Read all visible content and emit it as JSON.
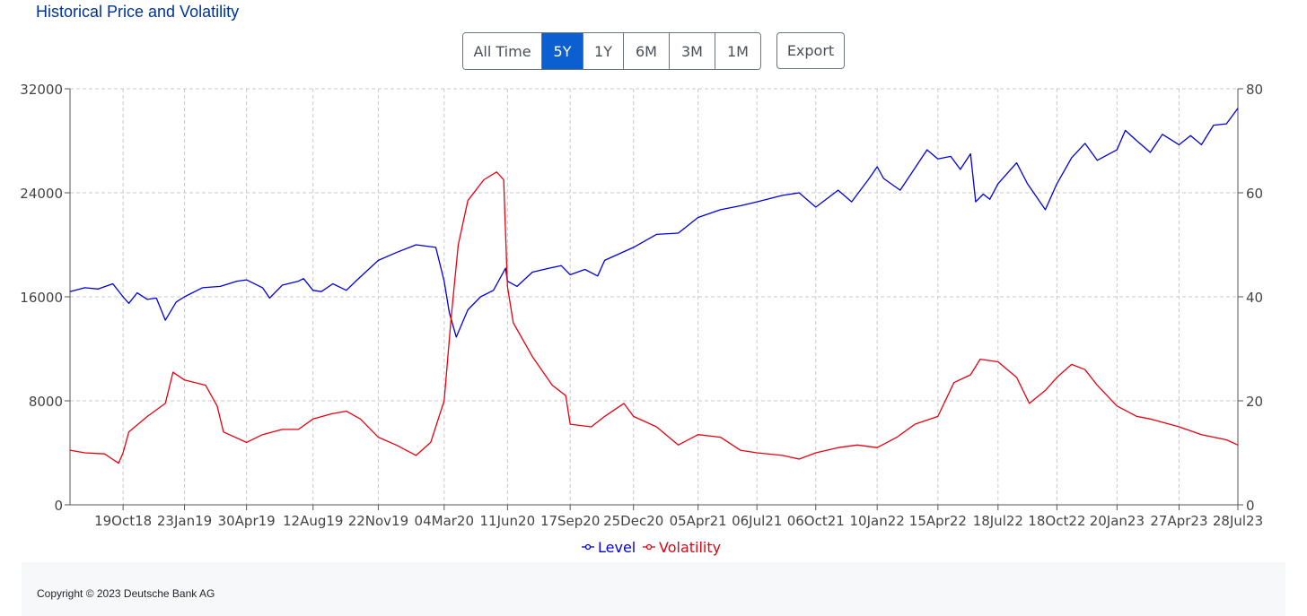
{
  "header": {
    "title": "Historical Price and Volatility"
  },
  "range_buttons": [
    {
      "label": "All Time",
      "active": false
    },
    {
      "label": "5Y",
      "active": true
    },
    {
      "label": "1Y",
      "active": false
    },
    {
      "label": "6M",
      "active": false
    },
    {
      "label": "3M",
      "active": false
    },
    {
      "label": "1M",
      "active": false
    }
  ],
  "export_label": "Export",
  "footer": {
    "copyright": "Copyright © 2023 Deutsche Bank AG"
  },
  "colors": {
    "level": "#0000dd",
    "volatility": "#e8000f",
    "grid": "#c8c8c8",
    "active_button": "#0b5fd1"
  },
  "chart_data": {
    "type": "line",
    "grid": true,
    "legend_position": "bottom-center",
    "x_range": [
      "2018-07-28",
      "2023-07-28"
    ],
    "x_ticks": [
      {
        "date": "2018-10-19",
        "label": "19Oct18"
      },
      {
        "date": "2019-01-23",
        "label": "23Jan19"
      },
      {
        "date": "2019-04-30",
        "label": "30Apr19"
      },
      {
        "date": "2019-08-12",
        "label": "12Aug19"
      },
      {
        "date": "2019-11-22",
        "label": "22Nov19"
      },
      {
        "date": "2020-03-04",
        "label": "04Mar20"
      },
      {
        "date": "2020-06-11",
        "label": "11Jun20"
      },
      {
        "date": "2020-09-17",
        "label": "17Sep20"
      },
      {
        "date": "2020-12-25",
        "label": "25Dec20"
      },
      {
        "date": "2021-04-05",
        "label": "05Apr21"
      },
      {
        "date": "2021-07-06",
        "label": "06Jul21"
      },
      {
        "date": "2021-10-06",
        "label": "06Oct21"
      },
      {
        "date": "2022-01-10",
        "label": "10Jan22"
      },
      {
        "date": "2022-04-15",
        "label": "15Apr22"
      },
      {
        "date": "2022-07-18",
        "label": "18Jul22"
      },
      {
        "date": "2022-10-18",
        "label": "18Oct22"
      },
      {
        "date": "2023-01-20",
        "label": "20Jan23"
      },
      {
        "date": "2023-04-27",
        "label": "27Apr23"
      },
      {
        "date": "2023-07-28",
        "label": "28Jul23"
      }
    ],
    "y_left": {
      "min": 0,
      "max": 32000,
      "ticks": [
        0,
        8000,
        16000,
        24000,
        32000
      ]
    },
    "y_right": {
      "min": 0,
      "max": 80,
      "ticks": [
        0,
        20,
        40,
        60,
        80
      ]
    },
    "series": [
      {
        "name": "Level",
        "axis": "left",
        "points": [
          [
            "2018-07-28",
            16400
          ],
          [
            "2018-08-20",
            16700
          ],
          [
            "2018-09-10",
            16600
          ],
          [
            "2018-10-03",
            17000
          ],
          [
            "2018-10-19",
            16000
          ],
          [
            "2018-10-28",
            15500
          ],
          [
            "2018-11-10",
            16300
          ],
          [
            "2018-11-26",
            15800
          ],
          [
            "2018-12-10",
            15900
          ],
          [
            "2018-12-24",
            14200
          ],
          [
            "2019-01-10",
            15600
          ],
          [
            "2019-01-23",
            16000
          ],
          [
            "2019-02-20",
            16700
          ],
          [
            "2019-03-20",
            16800
          ],
          [
            "2019-04-15",
            17200
          ],
          [
            "2019-04-30",
            17300
          ],
          [
            "2019-05-25",
            16700
          ],
          [
            "2019-06-05",
            15900
          ],
          [
            "2019-06-25",
            16900
          ],
          [
            "2019-07-20",
            17200
          ],
          [
            "2019-07-28",
            17400
          ],
          [
            "2019-08-12",
            16500
          ],
          [
            "2019-08-25",
            16400
          ],
          [
            "2019-09-12",
            17000
          ],
          [
            "2019-10-03",
            16500
          ],
          [
            "2019-10-20",
            17300
          ],
          [
            "2019-11-22",
            18800
          ],
          [
            "2019-12-20",
            19400
          ],
          [
            "2020-01-20",
            20000
          ],
          [
            "2020-02-20",
            19800
          ],
          [
            "2020-03-04",
            17200
          ],
          [
            "2020-03-12",
            14800
          ],
          [
            "2020-03-23",
            12900
          ],
          [
            "2020-04-10",
            15000
          ],
          [
            "2020-04-30",
            16000
          ],
          [
            "2020-05-20",
            16500
          ],
          [
            "2020-06-08",
            18200
          ],
          [
            "2020-06-11",
            17200
          ],
          [
            "2020-06-26",
            16800
          ],
          [
            "2020-07-20",
            17900
          ],
          [
            "2020-08-15",
            18200
          ],
          [
            "2020-09-03",
            18400
          ],
          [
            "2020-09-17",
            17700
          ],
          [
            "2020-10-10",
            18100
          ],
          [
            "2020-10-30",
            17600
          ],
          [
            "2020-11-10",
            18800
          ],
          [
            "2020-12-25",
            19800
          ],
          [
            "2021-01-30",
            20800
          ],
          [
            "2021-03-05",
            20900
          ],
          [
            "2021-04-05",
            22100
          ],
          [
            "2021-05-10",
            22700
          ],
          [
            "2021-06-10",
            23000
          ],
          [
            "2021-07-06",
            23300
          ],
          [
            "2021-08-15",
            23800
          ],
          [
            "2021-09-10",
            24000
          ],
          [
            "2021-10-06",
            22900
          ],
          [
            "2021-11-10",
            24200
          ],
          [
            "2021-12-01",
            23300
          ],
          [
            "2021-12-27",
            25000
          ],
          [
            "2022-01-10",
            26000
          ],
          [
            "2022-01-20",
            25100
          ],
          [
            "2022-02-15",
            24200
          ],
          [
            "2022-03-10",
            25900
          ],
          [
            "2022-03-29",
            27300
          ],
          [
            "2022-04-15",
            26600
          ],
          [
            "2022-05-05",
            26800
          ],
          [
            "2022-05-20",
            25800
          ],
          [
            "2022-06-05",
            27000
          ],
          [
            "2022-06-13",
            23300
          ],
          [
            "2022-06-25",
            23900
          ],
          [
            "2022-07-05",
            23500
          ],
          [
            "2022-07-18",
            24700
          ],
          [
            "2022-08-16",
            26300
          ],
          [
            "2022-09-02",
            24700
          ],
          [
            "2022-09-30",
            22700
          ],
          [
            "2022-10-18",
            24700
          ],
          [
            "2022-11-10",
            26700
          ],
          [
            "2022-12-01",
            27800
          ],
          [
            "2022-12-20",
            26500
          ],
          [
            "2023-01-20",
            27300
          ],
          [
            "2023-02-02",
            28800
          ],
          [
            "2023-02-20",
            28000
          ],
          [
            "2023-03-13",
            27100
          ],
          [
            "2023-04-01",
            28500
          ],
          [
            "2023-04-27",
            27700
          ],
          [
            "2023-05-15",
            28400
          ],
          [
            "2023-06-01",
            27700
          ],
          [
            "2023-06-20",
            29200
          ],
          [
            "2023-07-10",
            29300
          ],
          [
            "2023-07-28",
            30500
          ]
        ]
      },
      {
        "name": "Volatility",
        "axis": "right",
        "points": [
          [
            "2018-07-28",
            10.5
          ],
          [
            "2018-08-20",
            10.0
          ],
          [
            "2018-09-20",
            9.8
          ],
          [
            "2018-10-12",
            8.0
          ],
          [
            "2018-10-19",
            10.0
          ],
          [
            "2018-10-28",
            14.0
          ],
          [
            "2018-11-26",
            17.0
          ],
          [
            "2018-12-24",
            19.5
          ],
          [
            "2019-01-05",
            25.5
          ],
          [
            "2019-01-23",
            24.0
          ],
          [
            "2019-02-25",
            23.0
          ],
          [
            "2019-03-15",
            19.0
          ],
          [
            "2019-03-25",
            14.0
          ],
          [
            "2019-04-30",
            12.0
          ],
          [
            "2019-05-25",
            13.5
          ],
          [
            "2019-06-25",
            14.5
          ],
          [
            "2019-07-20",
            14.5
          ],
          [
            "2019-08-12",
            16.5
          ],
          [
            "2019-09-10",
            17.5
          ],
          [
            "2019-10-03",
            18.0
          ],
          [
            "2019-10-25",
            16.5
          ],
          [
            "2019-11-22",
            13.0
          ],
          [
            "2019-12-20",
            11.5
          ],
          [
            "2020-01-20",
            9.5
          ],
          [
            "2020-02-12",
            12.0
          ],
          [
            "2020-03-04",
            20.0
          ],
          [
            "2020-03-15",
            36.0
          ],
          [
            "2020-03-26",
            50.0
          ],
          [
            "2020-04-10",
            58.5
          ],
          [
            "2020-05-05",
            62.5
          ],
          [
            "2020-05-25",
            64.0
          ],
          [
            "2020-06-05",
            62.5
          ],
          [
            "2020-06-11",
            42.0
          ],
          [
            "2020-06-20",
            35.0
          ],
          [
            "2020-07-20",
            28.5
          ],
          [
            "2020-08-20",
            23.0
          ],
          [
            "2020-09-10",
            21.0
          ],
          [
            "2020-09-17",
            15.5
          ],
          [
            "2020-10-20",
            15.0
          ],
          [
            "2020-11-10",
            17.0
          ],
          [
            "2020-12-10",
            19.5
          ],
          [
            "2020-12-25",
            17.0
          ],
          [
            "2021-01-30",
            15.0
          ],
          [
            "2021-03-05",
            11.5
          ],
          [
            "2021-04-05",
            13.5
          ],
          [
            "2021-05-10",
            13.0
          ],
          [
            "2021-06-10",
            10.5
          ],
          [
            "2021-07-06",
            10.0
          ],
          [
            "2021-08-15",
            9.5
          ],
          [
            "2021-09-10",
            8.8
          ],
          [
            "2021-10-06",
            10.0
          ],
          [
            "2021-11-10",
            11.0
          ],
          [
            "2021-12-10",
            11.5
          ],
          [
            "2022-01-10",
            11.0
          ],
          [
            "2022-02-10",
            13.0
          ],
          [
            "2022-03-10",
            15.5
          ],
          [
            "2022-04-15",
            17.0
          ],
          [
            "2022-05-10",
            23.5
          ],
          [
            "2022-06-05",
            25.0
          ],
          [
            "2022-06-20",
            28.0
          ],
          [
            "2022-07-18",
            27.5
          ],
          [
            "2022-08-16",
            24.5
          ],
          [
            "2022-09-05",
            19.5
          ],
          [
            "2022-09-30",
            22.0
          ],
          [
            "2022-10-18",
            24.5
          ],
          [
            "2022-11-10",
            27.0
          ],
          [
            "2022-12-01",
            26.0
          ],
          [
            "2022-12-20",
            23.0
          ],
          [
            "2023-01-20",
            19.0
          ],
          [
            "2023-02-20",
            17.0
          ],
          [
            "2023-03-13",
            16.5
          ],
          [
            "2023-04-27",
            15.0
          ],
          [
            "2023-06-01",
            13.5
          ],
          [
            "2023-07-10",
            12.5
          ],
          [
            "2023-07-28",
            11.5
          ]
        ]
      }
    ]
  }
}
